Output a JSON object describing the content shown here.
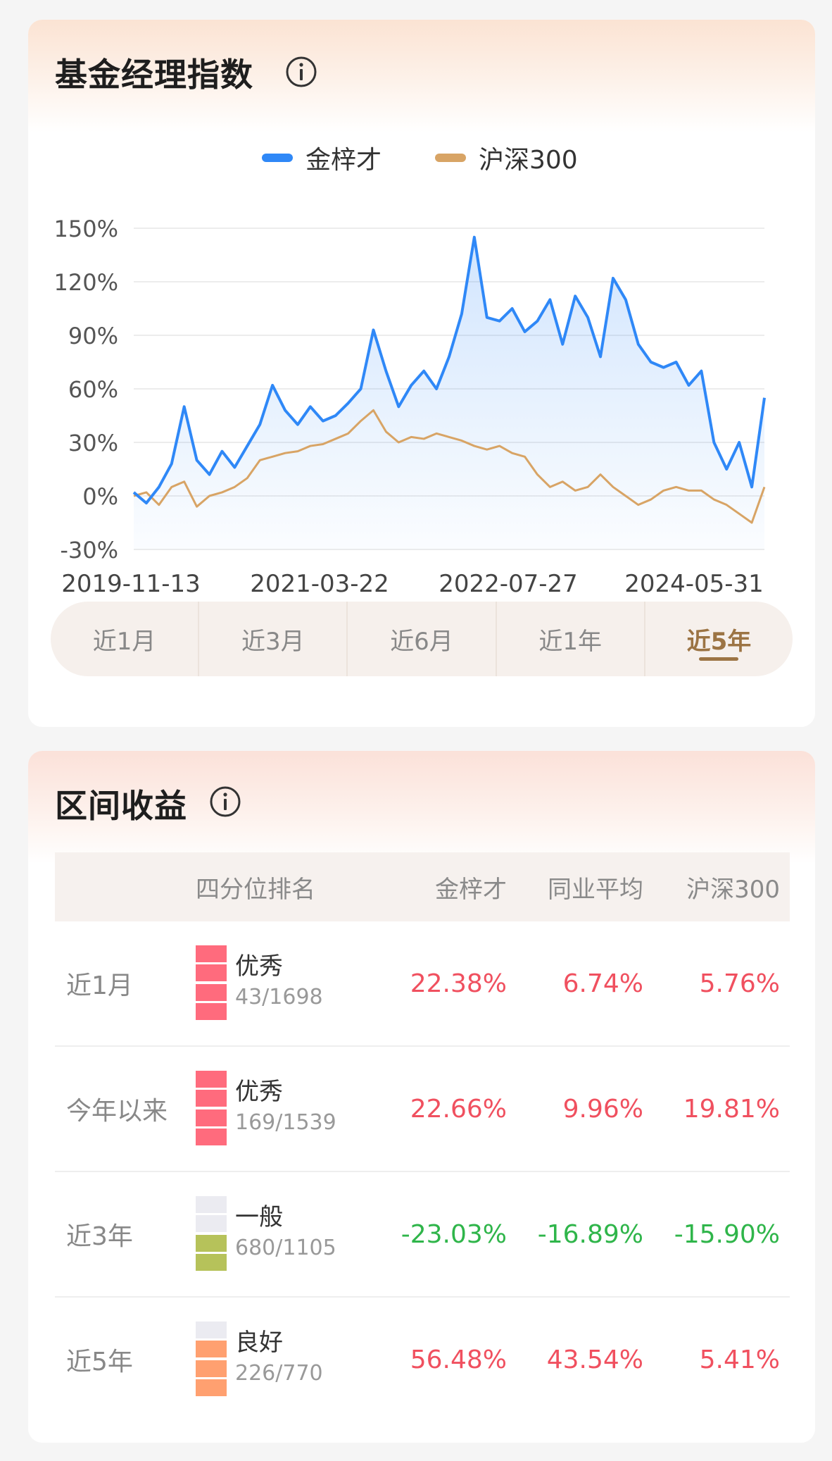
{
  "manager_index": {
    "title": "基金经理指数",
    "legend": [
      {
        "name": "金梓才",
        "color": "#2f88f7"
      },
      {
        "name": "沪深300",
        "color": "#d8a465"
      }
    ],
    "range_tabs": [
      {
        "label": "近1月",
        "active": false
      },
      {
        "label": "近3月",
        "active": false
      },
      {
        "label": "近6月",
        "active": false
      },
      {
        "label": "近1年",
        "active": false
      },
      {
        "label": "近5年",
        "active": true
      }
    ]
  },
  "chart_data": {
    "type": "line",
    "x_tick_labels": [
      "2019-11-13",
      "2021-03-22",
      "2022-07-27",
      "2024-05-31"
    ],
    "y_tick_labels": [
      "150%",
      "120%",
      "90%",
      "60%",
      "30%",
      "0%",
      "-30%"
    ],
    "ylim": [
      -30,
      150
    ],
    "grid": true,
    "legend_position": "top-center",
    "series": [
      {
        "name": "金梓才",
        "color": "#2f88f7",
        "x": [
          0,
          2,
          4,
          6,
          8,
          10,
          12,
          14,
          16,
          18,
          20,
          22,
          24,
          26,
          28,
          30,
          32,
          34,
          36,
          38,
          40,
          42,
          44,
          46,
          48,
          50,
          52,
          54,
          56,
          58,
          60,
          62,
          64,
          66,
          68,
          70,
          72,
          74,
          76,
          78,
          80,
          82,
          84,
          86,
          88,
          90,
          92,
          94,
          96,
          98,
          100
        ],
        "y": [
          2,
          -4,
          5,
          18,
          50,
          20,
          12,
          25,
          16,
          28,
          40,
          62,
          48,
          40,
          50,
          42,
          45,
          52,
          60,
          93,
          70,
          50,
          62,
          70,
          60,
          78,
          102,
          145,
          100,
          98,
          105,
          92,
          98,
          110,
          85,
          112,
          100,
          78,
          122,
          110,
          85,
          75,
          72,
          75,
          62,
          70,
          30,
          15,
          30,
          5,
          55
        ]
      },
      {
        "name": "沪深300",
        "color": "#d8a465",
        "x": [
          0,
          2,
          4,
          6,
          8,
          10,
          12,
          14,
          16,
          18,
          20,
          22,
          24,
          26,
          28,
          30,
          32,
          34,
          36,
          38,
          40,
          42,
          44,
          46,
          48,
          50,
          52,
          54,
          56,
          58,
          60,
          62,
          64,
          66,
          68,
          70,
          72,
          74,
          76,
          78,
          80,
          82,
          84,
          86,
          88,
          90,
          92,
          94,
          96,
          98,
          100
        ],
        "y": [
          0,
          2,
          -5,
          5,
          8,
          -6,
          0,
          2,
          5,
          10,
          20,
          22,
          24,
          25,
          28,
          29,
          32,
          35,
          42,
          48,
          36,
          30,
          33,
          32,
          35,
          33,
          31,
          28,
          26,
          28,
          24,
          22,
          12,
          5,
          8,
          3,
          5,
          12,
          5,
          0,
          -5,
          -2,
          3,
          5,
          3,
          3,
          -2,
          -5,
          -10,
          -15,
          5
        ]
      }
    ]
  },
  "returns": {
    "title": "区间收益",
    "columns": [
      "四分位排名",
      "金梓才",
      "同业平均",
      "沪深300"
    ],
    "rows": [
      {
        "period": "近1月",
        "quartile": "优秀",
        "rank": "43/1698",
        "manager": "22.38%",
        "peer": "6.74%",
        "index": "5.76%",
        "filled": 4,
        "fill_color": "#ff6b7d",
        "sign": "pos"
      },
      {
        "period": "今年以来",
        "quartile": "优秀",
        "rank": "169/1539",
        "manager": "22.66%",
        "peer": "9.96%",
        "index": "19.81%",
        "filled": 4,
        "fill_color": "#ff6b7d",
        "sign": "pos"
      },
      {
        "period": "近3年",
        "quartile": "一般",
        "rank": "680/1105",
        "manager": "-23.03%",
        "peer": "-16.89%",
        "index": "-15.90%",
        "filled": 2,
        "fill_color": "#b6c25a",
        "sign": "neg"
      },
      {
        "period": "近5年",
        "quartile": "良好",
        "rank": "226/770",
        "manager": "56.48%",
        "peer": "43.54%",
        "index": "5.41%",
        "filled": 3,
        "fill_color": "#ffa070",
        "sign": "pos"
      }
    ]
  }
}
